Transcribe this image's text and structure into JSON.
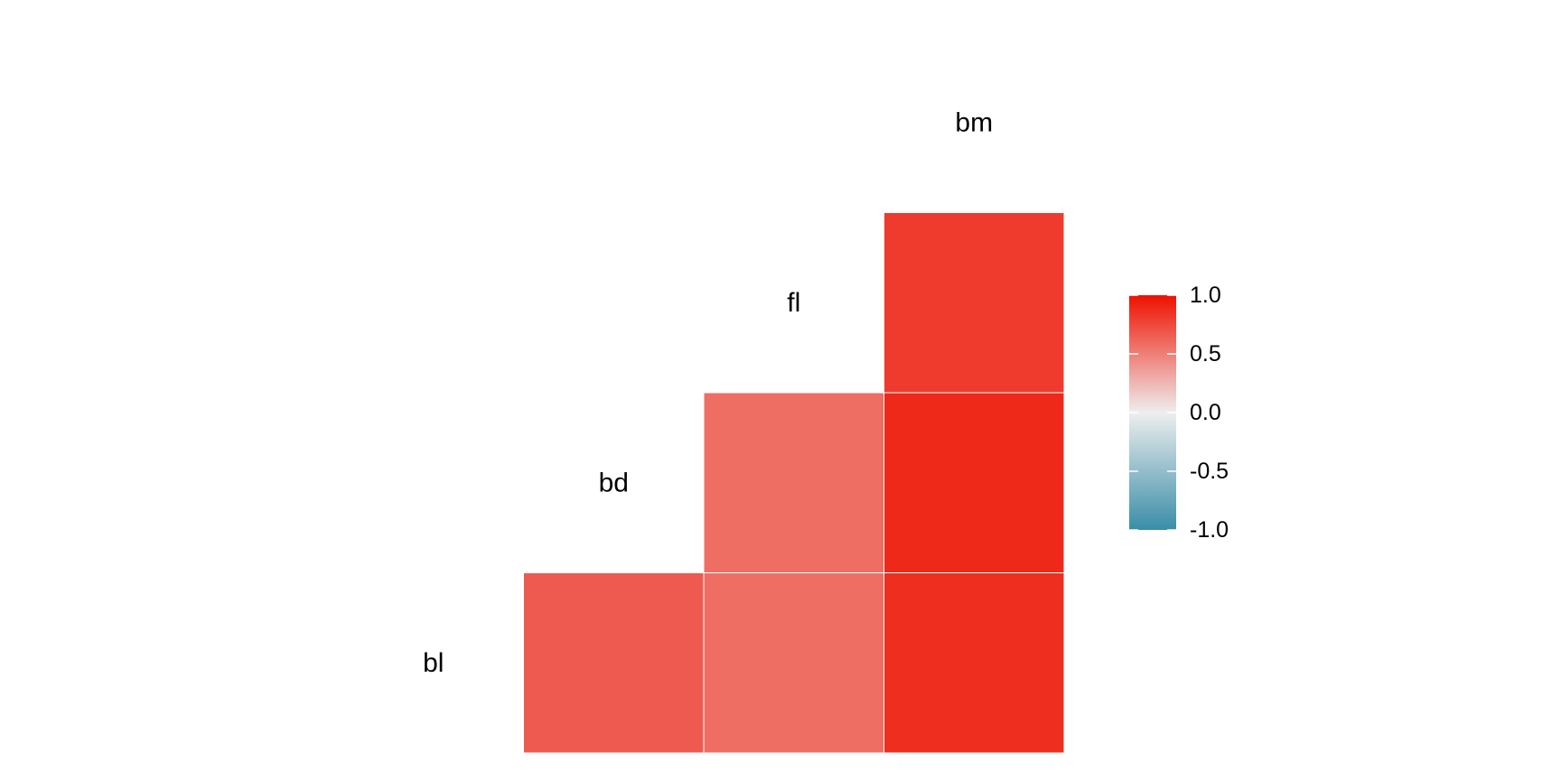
{
  "chart_data": {
    "type": "heatmap",
    "title": "",
    "variables": [
      "bl",
      "bd",
      "fl",
      "bm"
    ],
    "cells": [
      {
        "row": "bl",
        "col": "bd",
        "value": 0.67
      },
      {
        "row": "bl",
        "col": "fl",
        "value": 0.58
      },
      {
        "row": "bl",
        "col": "bm",
        "value": 0.87
      },
      {
        "row": "bd",
        "col": "fl",
        "value": 0.58
      },
      {
        "row": "bd",
        "col": "bm",
        "value": 0.89
      },
      {
        "row": "fl",
        "col": "bm",
        "value": 0.81
      }
    ],
    "layout": "lower-triangle",
    "legend": {
      "placement": "right",
      "range": [
        -1.0,
        1.0
      ],
      "ticks": [
        "1.0",
        "0.5",
        "0.0",
        "-0.5",
        "-1.0"
      ],
      "colors": {
        "low": "#3A8DA8",
        "mid": "#EEEEEE",
        "high": "#EE1100"
      }
    },
    "grid": false
  }
}
